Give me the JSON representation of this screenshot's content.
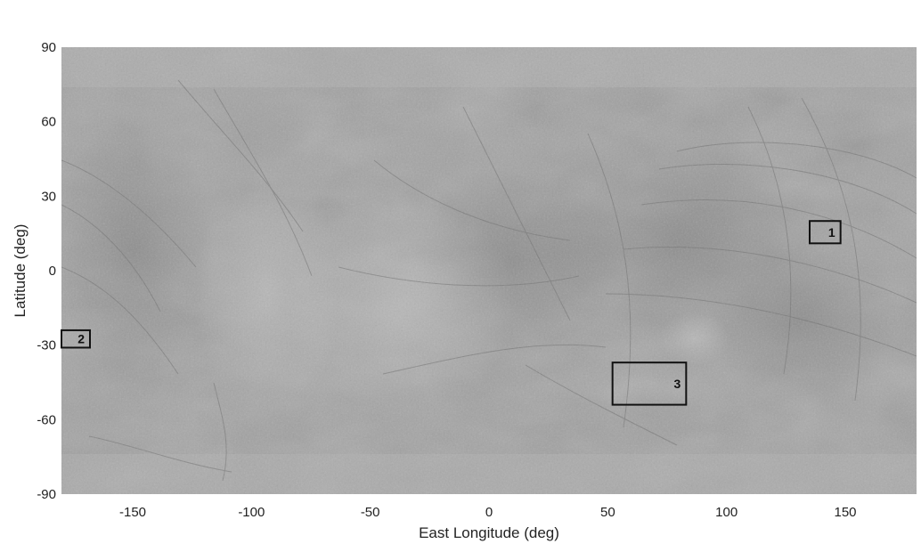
{
  "map": {
    "xlabel": "East Longitude (deg)",
    "ylabel": "Latitude (deg)",
    "xlim": [
      -180,
      180
    ],
    "ylim": [
      -90,
      90
    ],
    "xticks": [
      {
        "value": -150,
        "label": "-150"
      },
      {
        "value": -100,
        "label": "-100"
      },
      {
        "value": -50,
        "label": "-50"
      },
      {
        "value": 0,
        "label": "0"
      },
      {
        "value": 50,
        "label": "50"
      },
      {
        "value": 100,
        "label": "100"
      },
      {
        "value": 150,
        "label": "150"
      }
    ],
    "yticks": [
      {
        "value": 90,
        "label": "90"
      },
      {
        "value": 60,
        "label": "60"
      },
      {
        "value": 30,
        "label": "30"
      },
      {
        "value": 0,
        "label": "0"
      },
      {
        "value": -30,
        "label": "-30"
      },
      {
        "value": -60,
        "label": "-60"
      },
      {
        "value": -90,
        "label": "-90"
      }
    ],
    "regions": [
      {
        "label": "1",
        "lon_min": 135,
        "lon_max": 148,
        "lat_min": 11,
        "lat_max": 20
      },
      {
        "label": "2",
        "lon_min": -180,
        "lon_max": -168,
        "lat_min": -31,
        "lat_max": -24
      },
      {
        "label": "3",
        "lon_min": 52,
        "lon_max": 83,
        "lat_min": -54,
        "lat_max": -37
      }
    ],
    "colors": {
      "surface_base": "#a2a2a2",
      "surface_dark": "#8c8c8c",
      "surface_light": "#b6b6b6",
      "lineae": "#6e6e6e",
      "box_stroke": "#111111"
    }
  }
}
